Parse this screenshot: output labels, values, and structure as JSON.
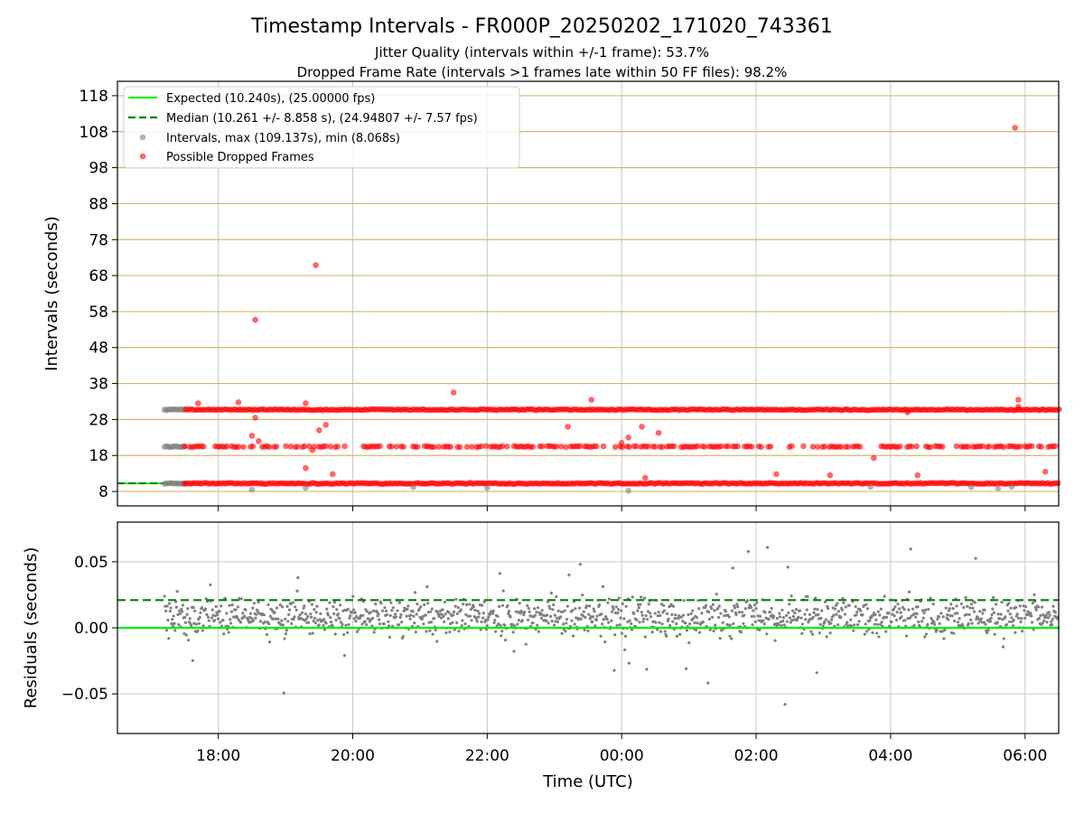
{
  "figure": {
    "title": "Timestamp Intervals - FR000P_20250202_171020_743361",
    "subtitle_1": "Jitter Quality (intervals within +/-1 frame): 53.7%",
    "subtitle_2": "Dropped Frame Rate (intervals >1 frames late within 50 FF files): 98.2%"
  },
  "chart_data": [
    {
      "type": "scatter",
      "panel": "top",
      "ylabel": "Intervals (seconds)",
      "ylim": [
        4,
        122
      ],
      "yticks": [
        8,
        18,
        28,
        38,
        48,
        58,
        68,
        78,
        88,
        98,
        108,
        118
      ],
      "xlim_hours": [
        16.5,
        30.5
      ],
      "horizontal_grid_color": "#d2b96a",
      "vertical_grid": true,
      "legend_position": "upper-left",
      "legend": [
        "Expected (10.240s), (25.00000 fps)",
        "Median (10.261 +/- 8.858 s), (24.94807 +/- 7.57 fps)",
        "Intervals, max (109.137s), min (8.068s)",
        "Possible Dropped Frames"
      ],
      "expected_interval": 10.24,
      "median_interval": 10.261,
      "interval_bands": [
        10.24,
        20.48,
        30.72
      ],
      "first_dropped_hour": 17.5,
      "data_start_hour": 17.2,
      "series": [
        {
          "name": "Intervals",
          "color": "#808080",
          "outliers": [
            [
              18.5,
              8.5
            ],
            [
              19.3,
              9.0
            ],
            [
              20.9,
              9.2
            ],
            [
              22.0,
              9.0
            ],
            [
              24.1,
              8.2
            ],
            [
              27.7,
              9.3
            ],
            [
              29.2,
              9.2
            ],
            [
              29.6,
              8.9
            ],
            [
              29.8,
              9.3
            ]
          ]
        },
        {
          "name": "Possible Dropped Frames",
          "color": "#ff0000",
          "outliers": [
            [
              17.7,
              32.5
            ],
            [
              18.3,
              32.8
            ],
            [
              18.55,
              55.7
            ],
            [
              18.55,
              28.5
            ],
            [
              18.5,
              23.5
            ],
            [
              18.6,
              22.0
            ],
            [
              19.3,
              32.5
            ],
            [
              19.45,
              70.9
            ],
            [
              19.5,
              25.0
            ],
            [
              19.6,
              26.5
            ],
            [
              19.4,
              19.5
            ],
            [
              19.3,
              14.5
            ],
            [
              19.7,
              12.8
            ],
            [
              21.5,
              35.5
            ],
            [
              23.2,
              26.0
            ],
            [
              23.55,
              33.5
            ],
            [
              24.3,
              26.0
            ],
            [
              24.1,
              23.0
            ],
            [
              24.0,
              21.5
            ],
            [
              24.55,
              24.3
            ],
            [
              28.25,
              30.0
            ],
            [
              27.75,
              17.3
            ],
            [
              29.85,
              109.1
            ],
            [
              29.9,
              33.5
            ],
            [
              29.9,
              31.5
            ],
            [
              30.3,
              13.5
            ],
            [
              28.4,
              12.5
            ],
            [
              27.1,
              12.5
            ],
            [
              26.3,
              12.8
            ],
            [
              24.35,
              11.8
            ]
          ]
        }
      ]
    },
    {
      "type": "scatter",
      "panel": "bottom",
      "xlabel": "Time (UTC)",
      "ylabel": "Residuals (seconds)",
      "ylim": [
        -0.08,
        0.08
      ],
      "yticks": [
        0.05,
        0.0,
        -0.05
      ],
      "ytick_labels": [
        "0.05",
        "0.00",
        "−0.05"
      ],
      "xlim_hours": [
        16.5,
        30.5
      ],
      "xticks_hours": [
        18,
        20,
        22,
        24,
        26,
        28,
        30
      ],
      "xtick_labels": [
        "18:00",
        "20:00",
        "22:00",
        "00:00",
        "02:00",
        "04:00",
        "06:00"
      ],
      "expected_residual": 0.0,
      "median_residual": 0.021,
      "point_color": "#808080",
      "expected_color": "#00ee00",
      "median_color": "#008000",
      "residual_center": 0.008,
      "residual_spread": 0.012
    }
  ]
}
